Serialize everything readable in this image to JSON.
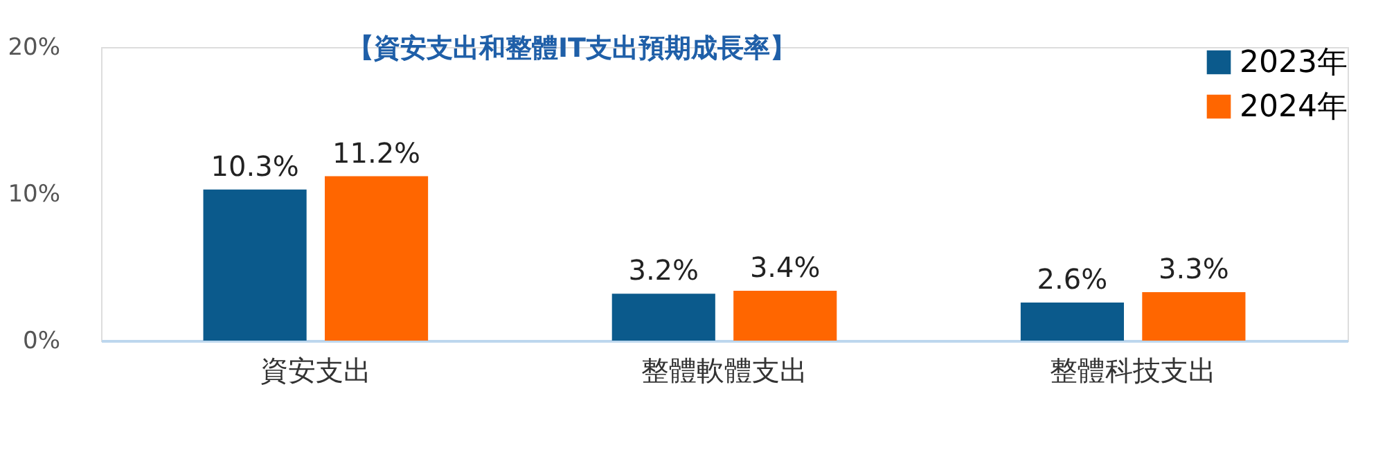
{
  "chart_data": {
    "type": "bar",
    "title": "【資安支出和整體IT支出預期成長率】",
    "categories": [
      "資安支出",
      "整體軟體支出",
      "整體科技支出"
    ],
    "series": [
      {
        "name": "2023年",
        "color": "#0b5a8c",
        "values": [
          10.3,
          3.2,
          2.6
        ]
      },
      {
        "name": "2024年",
        "color": "#ff6600",
        "values": [
          11.2,
          3.4,
          3.3
        ]
      }
    ],
    "ylim": [
      0,
      20
    ],
    "yticks": [
      {
        "value": 0,
        "label": "0%"
      },
      {
        "value": 10,
        "label": "10%"
      },
      {
        "value": 20,
        "label": "20%"
      }
    ],
    "value_labels": [
      [
        "10.3%",
        "3.2%",
        "2.6%"
      ],
      [
        "11.2%",
        "3.4%",
        "3.3%"
      ]
    ],
    "grid": false,
    "legend": "top right"
  }
}
